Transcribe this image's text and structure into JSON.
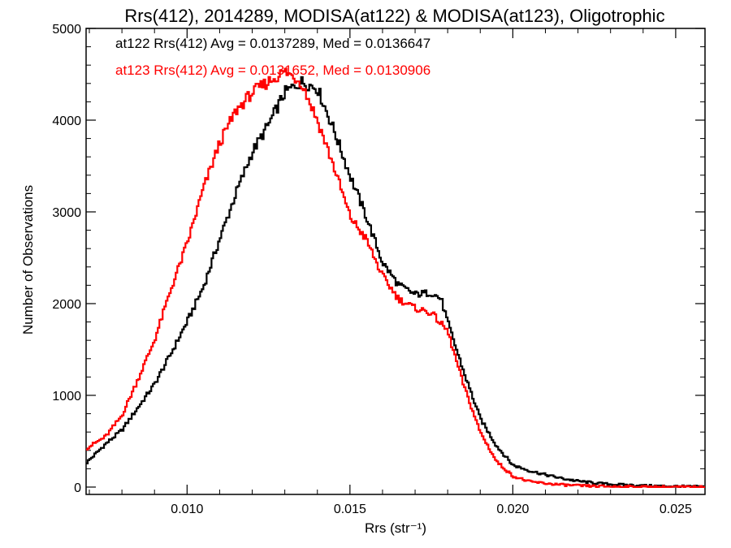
{
  "chart_data": {
    "type": "line",
    "title": "Rrs(412), 2014289, MODISA(at122) & MODISA(at123), Oligotrophic",
    "xlabel": "Rrs (str⁻¹)",
    "ylabel": "Number of Observations",
    "xlim": [
      0.0069,
      0.0259
    ],
    "ylim": [
      -80,
      5000
    ],
    "x_ticks": [
      0.01,
      0.015,
      0.02,
      0.025
    ],
    "x_tick_labels": [
      "0.010",
      "0.015",
      "0.020",
      "0.025"
    ],
    "y_ticks": [
      0,
      1000,
      2000,
      3000,
      4000,
      5000
    ],
    "y_tick_labels": [
      "0",
      "1000",
      "2000",
      "3000",
      "4000",
      "5000"
    ],
    "grid": false,
    "legend_placement": "top-left",
    "series": [
      {
        "name": "at122 Rrs(412) Avg = 0.0137289, Med = 0.0136647",
        "color": "#000000",
        "x": [
          0.0069,
          0.0075,
          0.008,
          0.0085,
          0.009,
          0.0095,
          0.01,
          0.0105,
          0.011,
          0.0115,
          0.012,
          0.0125,
          0.013,
          0.0135,
          0.014,
          0.0145,
          0.015,
          0.0155,
          0.016,
          0.0165,
          0.017,
          0.0175,
          0.0178,
          0.018,
          0.0185,
          0.019,
          0.0195,
          0.02,
          0.0205,
          0.021,
          0.0215,
          0.022,
          0.0225,
          0.023,
          0.024,
          0.025,
          0.0259
        ],
        "y": [
          260,
          470,
          620,
          870,
          1120,
          1450,
          1800,
          2180,
          2700,
          3200,
          3650,
          3950,
          4300,
          4420,
          4350,
          3900,
          3400,
          2950,
          2450,
          2200,
          2100,
          2120,
          2050,
          1800,
          1250,
          750,
          450,
          240,
          180,
          135,
          95,
          65,
          45,
          30,
          15,
          8,
          3
        ]
      },
      {
        "name": "at123 Rrs(412) Avg = 0.0131652, Med = 0.0130906",
        "color": "#ff0000",
        "x": [
          0.0069,
          0.0075,
          0.008,
          0.0085,
          0.009,
          0.0095,
          0.01,
          0.0105,
          0.011,
          0.0115,
          0.012,
          0.0125,
          0.013,
          0.0135,
          0.014,
          0.0145,
          0.015,
          0.0155,
          0.016,
          0.0165,
          0.017,
          0.0175,
          0.018,
          0.0185,
          0.019,
          0.0195,
          0.02,
          0.0205,
          0.021,
          0.0215,
          0.022,
          0.0225,
          0.023,
          0.024,
          0.025,
          0.0259
        ],
        "y": [
          420,
          550,
          780,
          1180,
          1600,
          2150,
          2650,
          3250,
          3750,
          4100,
          4300,
          4420,
          4530,
          4420,
          4000,
          3500,
          2950,
          2700,
          2300,
          2050,
          1950,
          1900,
          1700,
          1100,
          600,
          280,
          120,
          60,
          40,
          25,
          15,
          10,
          6,
          3,
          1,
          0
        ]
      }
    ]
  }
}
